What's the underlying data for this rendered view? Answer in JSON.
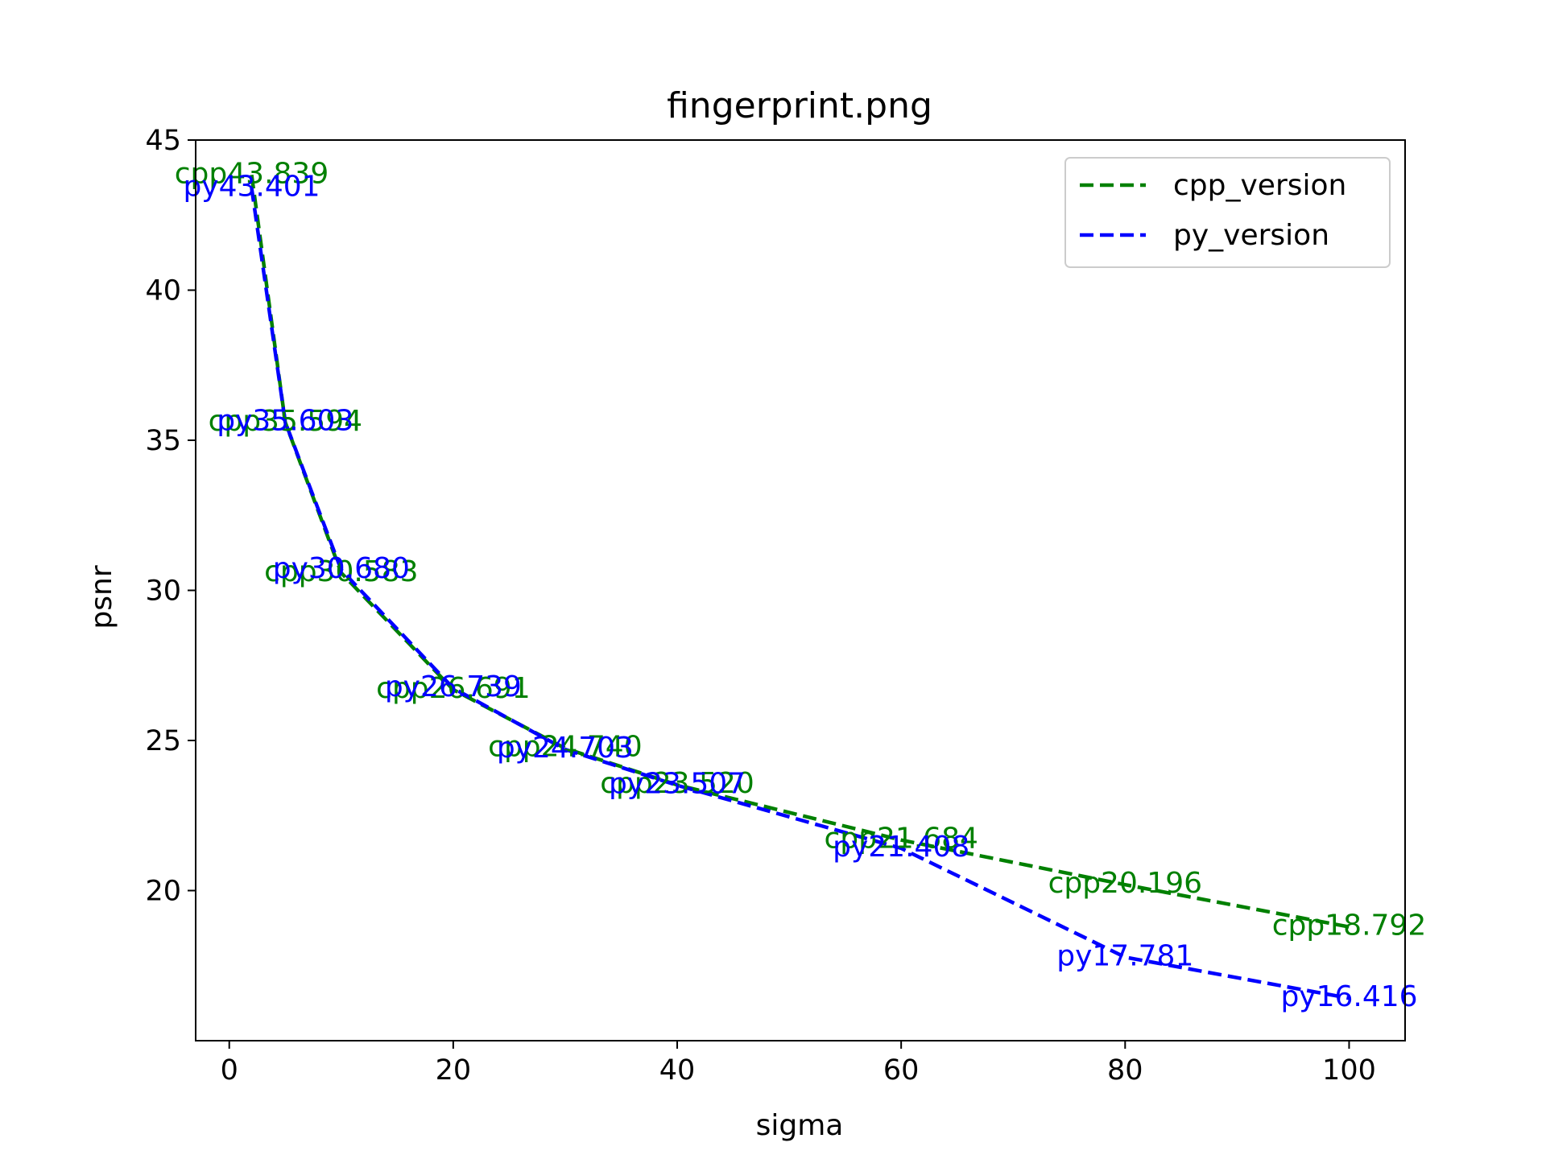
{
  "chart_data": {
    "type": "line",
    "title": "fingerprint.png",
    "xlabel": "sigma",
    "ylabel": "psnr",
    "xlim": [
      -3,
      105
    ],
    "ylim": [
      15,
      45
    ],
    "xticks": [
      0,
      20,
      40,
      60,
      80,
      100
    ],
    "yticks": [
      20,
      25,
      30,
      35,
      40,
      45
    ],
    "legend_position": "top-right",
    "x": [
      2,
      5,
      10,
      20,
      30,
      40,
      60,
      80,
      100
    ],
    "series": [
      {
        "name": "cpp_version",
        "color": "#008000",
        "linestyle": "dashed",
        "values": [
          43.839,
          35.594,
          30.583,
          26.691,
          24.74,
          23.52,
          21.684,
          20.196,
          18.792
        ],
        "labels": [
          "cpp43.839",
          "cpp35.594",
          "cpp30.583",
          "cpp26.691",
          "cpp24.740",
          "cpp23.520",
          "cpp21.684",
          "cpp20.196",
          "cpp18.792"
        ]
      },
      {
        "name": "py_version",
        "color": "#0000ff",
        "linestyle": "dashed",
        "values": [
          43.401,
          35.603,
          30.68,
          26.739,
          24.703,
          23.507,
          21.408,
          17.781,
          16.416
        ],
        "labels": [
          "py43.401",
          "py35.603",
          "py30.680",
          "py26.739",
          "py24.703",
          "py23.507",
          "py21.408",
          "py17.781",
          "py16.416"
        ]
      }
    ]
  }
}
